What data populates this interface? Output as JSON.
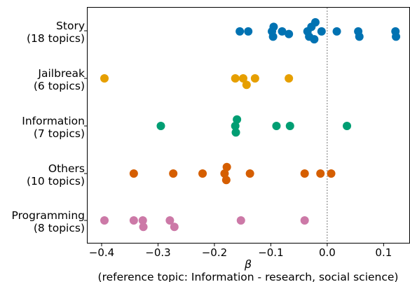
{
  "chart_data": {
    "type": "scatter",
    "xlabel": "β",
    "xlabel_note": "(reference topic: Information - research, social science)",
    "xlim": [
      -0.42,
      0.15
    ],
    "xticks": [
      -0.4,
      -0.3,
      -0.2,
      -0.1,
      0.0,
      0.1
    ],
    "xtick_labels": [
      "−0.4",
      "−0.3",
      "−0.2",
      "−0.1",
      "0.0",
      "0.1"
    ],
    "reference_line_x": 0.0,
    "grid": false,
    "categories": [
      "Story\n(18 topics)",
      "Jailbreak\n(6 topics)",
      "Information\n(7 topics)",
      "Others\n(10 topics)",
      "Programming\n(8 topics)"
    ],
    "series": [
      {
        "color": "#0072B2",
        "points": [
          {
            "x": -0.021,
            "jitter": -1.3
          },
          {
            "x": -0.028,
            "jitter": -0.6
          },
          {
            "x": -0.095,
            "jitter": -0.6
          },
          {
            "x": -0.155,
            "jitter": 0.1
          },
          {
            "x": -0.14,
            "jitter": 0.1
          },
          {
            "x": -0.098,
            "jitter": 0.1
          },
          {
            "x": -0.08,
            "jitter": 0.1
          },
          {
            "x": -0.035,
            "jitter": 0.1
          },
          {
            "x": -0.01,
            "jitter": 0.1
          },
          {
            "x": 0.017,
            "jitter": 0.1
          },
          {
            "x": 0.055,
            "jitter": 0.1
          },
          {
            "x": 0.121,
            "jitter": 0.1
          },
          {
            "x": -0.068,
            "jitter": 0.5
          },
          {
            "x": -0.096,
            "jitter": 0.9
          },
          {
            "x": -0.032,
            "jitter": 0.9
          },
          {
            "x": 0.057,
            "jitter": 0.9
          },
          {
            "x": 0.122,
            "jitter": 0.9
          },
          {
            "x": -0.023,
            "jitter": 1.3
          }
        ]
      },
      {
        "color": "#E69F00",
        "points": [
          {
            "x": -0.395,
            "jitter": 0
          },
          {
            "x": -0.163,
            "jitter": 0
          },
          {
            "x": -0.149,
            "jitter": 0
          },
          {
            "x": -0.128,
            "jitter": 0
          },
          {
            "x": -0.068,
            "jitter": 0
          },
          {
            "x": -0.143,
            "jitter": 1
          }
        ]
      },
      {
        "color": "#009E73",
        "points": [
          {
            "x": -0.16,
            "jitter": -1
          },
          {
            "x": -0.295,
            "jitter": 0
          },
          {
            "x": -0.163,
            "jitter": 0
          },
          {
            "x": -0.09,
            "jitter": 0
          },
          {
            "x": -0.066,
            "jitter": 0
          },
          {
            "x": 0.035,
            "jitter": 0
          },
          {
            "x": -0.162,
            "jitter": 1
          }
        ]
      },
      {
        "color": "#D55E00",
        "points": [
          {
            "x": -0.178,
            "jitter": -1
          },
          {
            "x": -0.343,
            "jitter": 0
          },
          {
            "x": -0.273,
            "jitter": 0
          },
          {
            "x": -0.221,
            "jitter": 0
          },
          {
            "x": -0.182,
            "jitter": 0
          },
          {
            "x": -0.137,
            "jitter": 0
          },
          {
            "x": -0.04,
            "jitter": 0
          },
          {
            "x": -0.012,
            "jitter": 0
          },
          {
            "x": 0.007,
            "jitter": 0
          },
          {
            "x": -0.179,
            "jitter": 1
          }
        ]
      },
      {
        "color": "#CC79A7",
        "points": [
          {
            "x": -0.395,
            "jitter": 0
          },
          {
            "x": -0.343,
            "jitter": 0
          },
          {
            "x": -0.327,
            "jitter": 0
          },
          {
            "x": -0.279,
            "jitter": 0
          },
          {
            "x": -0.153,
            "jitter": 0
          },
          {
            "x": -0.04,
            "jitter": 0
          },
          {
            "x": -0.326,
            "jitter": 1
          },
          {
            "x": -0.271,
            "jitter": 1
          }
        ]
      }
    ]
  }
}
